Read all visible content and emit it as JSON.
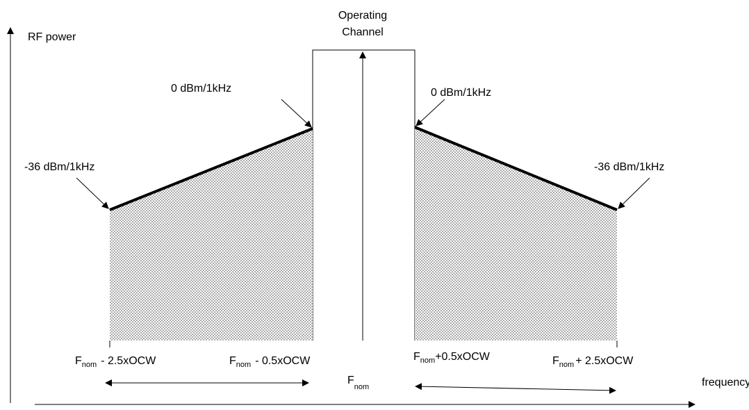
{
  "axes": {
    "y_label": "RF power",
    "x_label": "frequency"
  },
  "channel": {
    "label": [
      "Operating",
      "Channel"
    ]
  },
  "levels": [
    {
      "label": "-36 dBm/1kHz"
    },
    {
      "label": "0 dBm/1kHz"
    },
    {
      "label": "0 dBm/1kHz"
    },
    {
      "label": "-36 dBm/1kHz"
    }
  ],
  "frequencies": [
    {
      "base": "F",
      "subscript": "nom",
      "offset": "- 2.5xOCW"
    },
    {
      "base": "F",
      "subscript": "nom",
      "offset": "- 0.5xOCW"
    },
    {
      "base": "F",
      "subscript": "nom"
    },
    {
      "base": "F",
      "subscript": "nom",
      "offset": "+0.5xOCW"
    },
    {
      "base": "F",
      "subscript": "nom",
      "offset": "+ 2.5xOCW"
    }
  ]
}
